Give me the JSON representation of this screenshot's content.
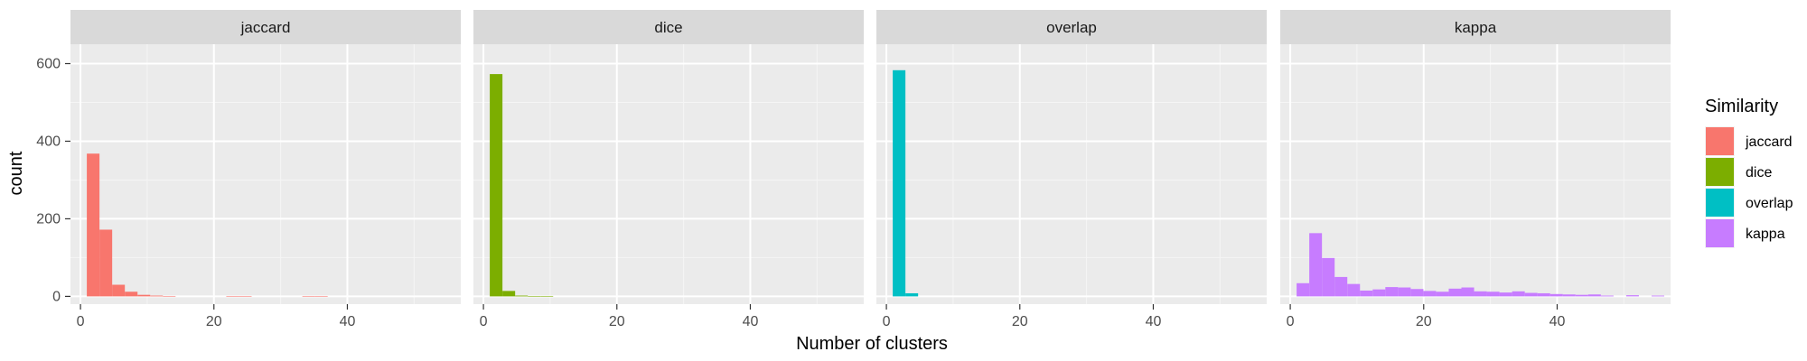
{
  "chart_data": {
    "type": "bar",
    "chart_kind": "faceted histogram",
    "title": "",
    "xlabel": "Number of clusters",
    "ylabel": "count",
    "xlim": [
      -1.5,
      57
    ],
    "ylim": [
      -20,
      650
    ],
    "x_ticks": [
      0,
      20,
      40
    ],
    "y_ticks": [
      0,
      200,
      400,
      600
    ],
    "bin_width": 1.9,
    "grid": true,
    "legend": {
      "title": "Similarity",
      "position": "right"
    },
    "series": [
      {
        "name": "jaccard",
        "color": "#F8766D",
        "bins": [
          {
            "x": 1.9,
            "count": 368
          },
          {
            "x": 3.8,
            "count": 172
          },
          {
            "x": 5.7,
            "count": 30
          },
          {
            "x": 7.6,
            "count": 12
          },
          {
            "x": 9.5,
            "count": 4
          },
          {
            "x": 11.4,
            "count": 2
          },
          {
            "x": 13.3,
            "count": 1
          },
          {
            "x": 22.8,
            "count": 1
          },
          {
            "x": 24.7,
            "count": 1
          },
          {
            "x": 34.2,
            "count": 1
          },
          {
            "x": 36.1,
            "count": 1
          }
        ]
      },
      {
        "name": "dice",
        "color": "#7CAE00",
        "bins": [
          {
            "x": 1.9,
            "count": 573
          },
          {
            "x": 3.8,
            "count": 14
          },
          {
            "x": 5.7,
            "count": 2
          },
          {
            "x": 7.6,
            "count": 1
          },
          {
            "x": 9.5,
            "count": 1
          }
        ]
      },
      {
        "name": "overlap",
        "color": "#00BFC4",
        "bins": [
          {
            "x": 1.9,
            "count": 583
          },
          {
            "x": 3.8,
            "count": 8
          }
        ]
      },
      {
        "name": "kappa",
        "color": "#C77CFF",
        "bins": [
          {
            "x": 1.9,
            "count": 34
          },
          {
            "x": 3.8,
            "count": 163
          },
          {
            "x": 5.7,
            "count": 99
          },
          {
            "x": 7.6,
            "count": 50
          },
          {
            "x": 9.5,
            "count": 32
          },
          {
            "x": 11.4,
            "count": 15
          },
          {
            "x": 13.3,
            "count": 18
          },
          {
            "x": 15.2,
            "count": 24
          },
          {
            "x": 17.1,
            "count": 23
          },
          {
            "x": 19.0,
            "count": 19
          },
          {
            "x": 20.9,
            "count": 14
          },
          {
            "x": 22.8,
            "count": 12
          },
          {
            "x": 24.7,
            "count": 20
          },
          {
            "x": 26.6,
            "count": 23
          },
          {
            "x": 28.5,
            "count": 13
          },
          {
            "x": 30.4,
            "count": 12
          },
          {
            "x": 32.3,
            "count": 10
          },
          {
            "x": 34.2,
            "count": 13
          },
          {
            "x": 36.1,
            "count": 9
          },
          {
            "x": 38.0,
            "count": 8
          },
          {
            "x": 39.9,
            "count": 6
          },
          {
            "x": 41.8,
            "count": 5
          },
          {
            "x": 43.7,
            "count": 4
          },
          {
            "x": 45.6,
            "count": 5
          },
          {
            "x": 47.5,
            "count": 2
          },
          {
            "x": 51.3,
            "count": 3
          },
          {
            "x": 55.1,
            "count": 2
          }
        ]
      }
    ]
  }
}
